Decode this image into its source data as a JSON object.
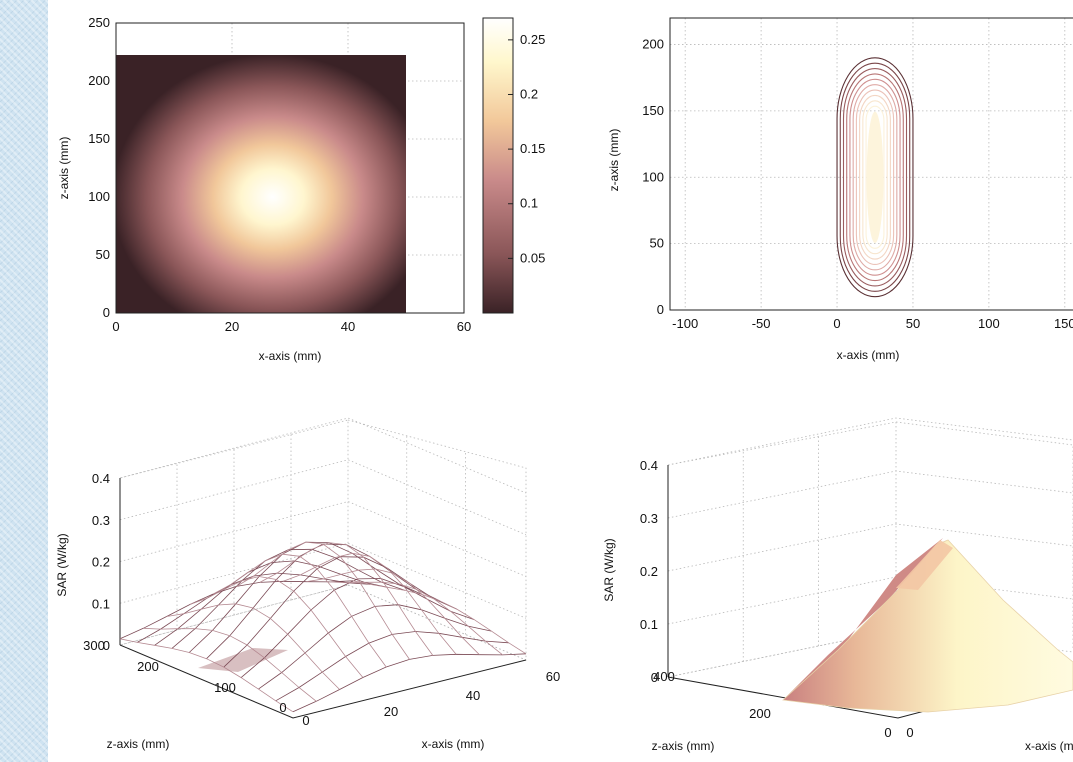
{
  "chart_data": [
    {
      "type": "heatmap",
      "xlabel": "x-axis (mm)",
      "ylabel": "z-axis (mm)",
      "xlim": [
        0,
        60
      ],
      "ylim": [
        0,
        250
      ],
      "x_ticks": [
        "0",
        "20",
        "40",
        "60"
      ],
      "y_ticks": [
        "0",
        "50",
        "100",
        "150",
        "200",
        "250"
      ],
      "data_extent": {
        "x": [
          0,
          50
        ],
        "z": [
          0,
          222
        ]
      },
      "peak": {
        "x": 27,
        "z": 100,
        "value": 0.26
      },
      "colorbar": {
        "ticks": [
          "0.05",
          "0.1",
          "0.15",
          "0.2",
          "0.25"
        ],
        "range": [
          0,
          0.27
        ],
        "colors": [
          "#3a2226",
          "#8a5658",
          "#c98a8a",
          "#f2c89a",
          "#fff7cc",
          "#ffffff"
        ]
      }
    },
    {
      "type": "contour",
      "xlabel": "x-axis (mm)",
      "ylabel": "z-axis (mm)",
      "xlim": [
        -110,
        160
      ],
      "ylim": [
        0,
        220
      ],
      "x_ticks": [
        "-100",
        "-50",
        "0",
        "50",
        "100",
        "150"
      ],
      "y_ticks": [
        "0",
        "50",
        "100",
        "150",
        "200"
      ],
      "center": {
        "x": 25,
        "z": 100
      },
      "extent": {
        "x": [
          0,
          50
        ],
        "z": [
          10,
          190
        ]
      }
    },
    {
      "type": "surface-mesh",
      "zlabel": "SAR (W/kg)",
      "xlabel": "x-axis (mm)",
      "ylabel": "z-axis (mm)",
      "z_ticks": [
        "0",
        "0.1",
        "0.2",
        "0.3",
        "0.4"
      ],
      "x_ticks": [
        "0",
        "20",
        "40",
        "60"
      ],
      "y_ticks": [
        "0",
        "100",
        "200",
        "300"
      ],
      "zlim": [
        0,
        0.4
      ],
      "peak": 0.26
    },
    {
      "type": "surface",
      "zlabel": "SAR (W/kg)",
      "xlabel": "x-axis (mm",
      "ylabel": "z-axis (mm)",
      "z_ticks": [
        "0",
        "0.1",
        "0.2",
        "0.3",
        "0.4"
      ],
      "x_ticks": [
        "0"
      ],
      "y_ticks": [
        "0",
        "200",
        "400"
      ],
      "zlim": [
        0,
        0.4
      ],
      "peak": 0.26
    }
  ]
}
